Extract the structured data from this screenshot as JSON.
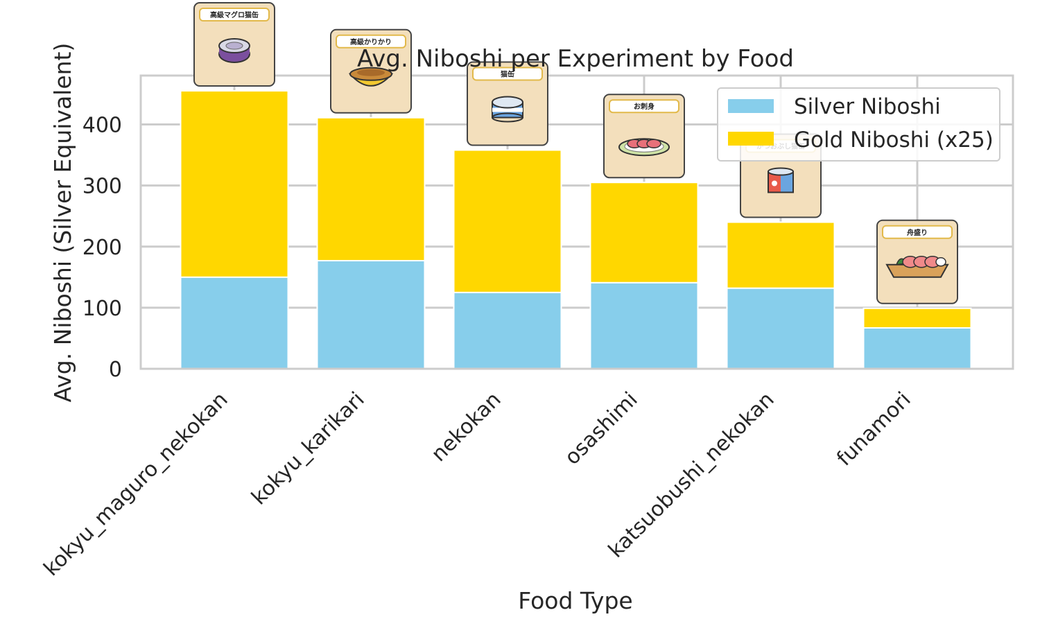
{
  "chart_data": {
    "type": "bar",
    "stacked": true,
    "title": "Avg. Niboshi per Experiment by Food",
    "xlabel": "Food Type",
    "ylabel": "Avg. Niboshi (Silver Equivalent)",
    "ylim": [
      0,
      480
    ],
    "yticks": [
      0,
      100,
      200,
      300,
      400
    ],
    "grid": true,
    "legend_position": "top-right",
    "categories": [
      "kokyu_maguro_nekokan",
      "kokyu_karikari",
      "nekokan",
      "osashimi",
      "katsuobushi_nekokan",
      "funamori"
    ],
    "series": [
      {
        "name": "Silver Niboshi",
        "color": "#87ceeb",
        "values": [
          150,
          177,
          125,
          141,
          132,
          67
        ]
      },
      {
        "name": "Gold Niboshi (x25)",
        "color": "#ffd700",
        "values": [
          305,
          234,
          233,
          164,
          108,
          32
        ]
      }
    ],
    "food_cards": [
      {
        "label": "高級マグロ猫缶",
        "icon": "purple-tuna-can-icon"
      },
      {
        "label": "高級かりかり",
        "icon": "yellow-food-bowl-icon"
      },
      {
        "label": "猫缶",
        "icon": "blue-cat-food-can-icon"
      },
      {
        "label": "お刺身",
        "icon": "sashimi-plate-icon"
      },
      {
        "label": "かつおぶし猫缶",
        "icon": "bonito-cat-can-icon"
      },
      {
        "label": "舟盛り",
        "icon": "sashimi-boat-icon"
      }
    ]
  }
}
